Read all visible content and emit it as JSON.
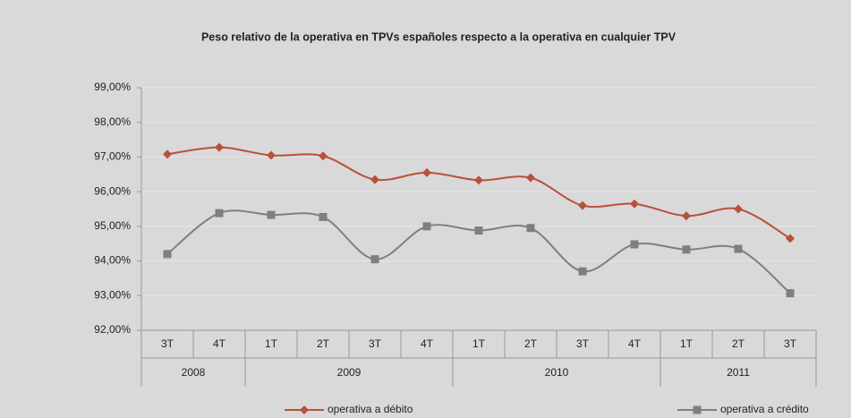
{
  "chart_data": {
    "type": "line",
    "title": "Peso relativo de la operativa en TPVs españoles respecto a la operativa en cualquier TPV",
    "categories": [
      "3T",
      "4T",
      "1T",
      "2T",
      "3T",
      "4T",
      "1T",
      "2T",
      "3T",
      "4T",
      "1T",
      "2T",
      "3T"
    ],
    "years": [
      "2008",
      "2008",
      "2009",
      "2009",
      "2009",
      "2009",
      "2010",
      "2010",
      "2010",
      "2010",
      "2011",
      "2011",
      "2011"
    ],
    "series": [
      {
        "name": "operativa a débito",
        "color": "#b9503a",
        "marker": "diamond",
        "values": [
          97.08,
          97.28,
          97.05,
          97.03,
          96.35,
          96.55,
          96.33,
          96.4,
          95.6,
          95.65,
          95.3,
          95.5,
          94.65
        ]
      },
      {
        "name": "operativa a crédito",
        "color": "#7f7f7f",
        "marker": "square",
        "values": [
          94.2,
          95.38,
          95.33,
          95.27,
          94.05,
          95.0,
          94.88,
          94.95,
          93.7,
          94.48,
          94.33,
          94.35,
          93.07
        ]
      }
    ],
    "ylim": [
      92,
      99
    ],
    "yticks": [
      {
        "value": 92,
        "label": "92,00%"
      },
      {
        "value": 93,
        "label": "93,00%"
      },
      {
        "value": 94,
        "label": "94,00%"
      },
      {
        "value": 95,
        "label": "95,00%"
      },
      {
        "value": 96,
        "label": "96,00%"
      },
      {
        "value": 97,
        "label": "97,00%"
      },
      {
        "value": 98,
        "label": "98,00%"
      },
      {
        "value": 99,
        "label": "99,00%"
      }
    ],
    "grid": true,
    "smooth": true,
    "legend": "bottom"
  }
}
